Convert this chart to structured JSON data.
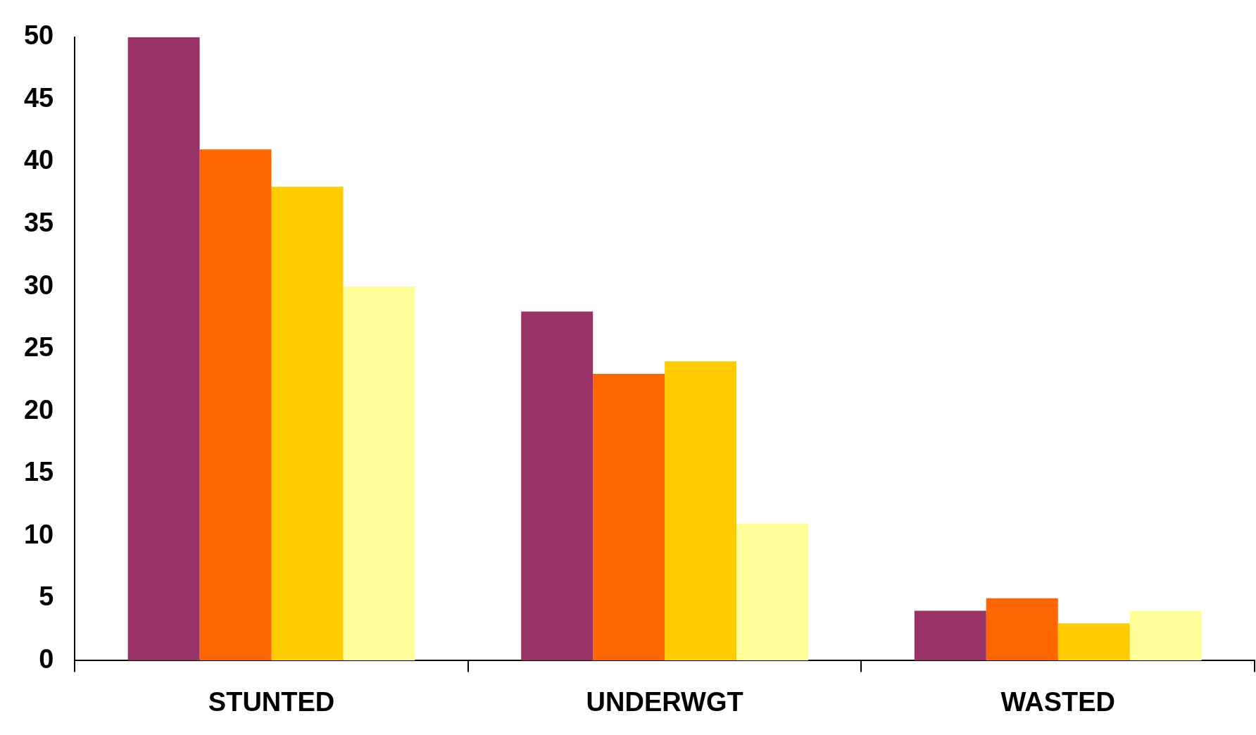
{
  "chart_data": {
    "type": "bar",
    "categories": [
      "STUNTED",
      "UNDERWGT",
      "WASTED"
    ],
    "series": [
      {
        "color": "#993366",
        "values": [
          50,
          28,
          4
        ]
      },
      {
        "color": "#ff6600",
        "values": [
          41,
          23,
          5
        ]
      },
      {
        "color": "#ffcc00",
        "values": [
          38,
          24,
          3
        ]
      },
      {
        "color": "#ffff99",
        "values": [
          30,
          11,
          4
        ]
      }
    ],
    "ylim": [
      0,
      50
    ],
    "yticks": [
      0,
      5,
      10,
      15,
      20,
      25,
      30,
      35,
      40,
      45,
      50
    ],
    "grid": false,
    "legend": false
  }
}
